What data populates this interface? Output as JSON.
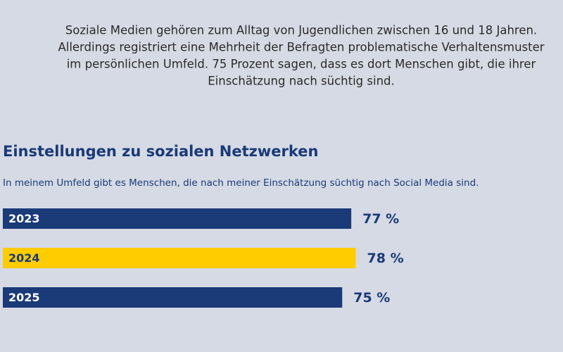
{
  "intro": {
    "lines": [
      "Soziale Medien gehören zum Alltag von Jugendlichen zwischen 16 und 18 Jahren.",
      "Allerdings registriert eine Mehrheit der Befragten problematische Verhaltensmuster",
      "im persönlichen Umfeld. 75 Prozent sagen, dass es dort Menschen gibt, die ihrer",
      "Einschätzung nach süchtig sind."
    ]
  },
  "chart_data": {
    "type": "bar",
    "orientation": "horizontal",
    "title": "Einstellungen zu sozialen Netzwerken",
    "subtitle": "In meinem Umfeld gibt es Menschen, die nach meiner Einschätzung süchtig nach Social Media sind.",
    "categories": [
      "2023",
      "2024",
      "2025"
    ],
    "values": [
      77,
      78,
      75
    ],
    "value_labels": [
      "77 %",
      "78 %",
      "75 %"
    ],
    "colors": [
      "#1a3a78",
      "#ffcc00",
      "#1a3a78"
    ],
    "label_colors": [
      "#ffffff",
      "#1a3a78",
      "#ffffff"
    ]
  }
}
